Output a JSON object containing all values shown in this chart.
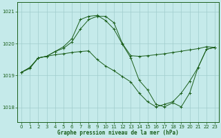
{
  "title": "Graphe pression niveau de la mer (hPa)",
  "background_color": "#c5eaea",
  "line_color": "#1a5e1a",
  "grid_color": "#a0cccc",
  "xlim": [
    -0.5,
    23.5
  ],
  "ylim": [
    1017.55,
    1021.3
  ],
  "yticks": [
    1018,
    1019,
    1020,
    1021
  ],
  "xticks": [
    0,
    1,
    2,
    3,
    4,
    5,
    6,
    7,
    8,
    9,
    10,
    11,
    12,
    13,
    14,
    15,
    16,
    17,
    18,
    19,
    20,
    21,
    22,
    23
  ],
  "series_upper": [
    1019.1,
    1019.25,
    1019.55,
    1019.6,
    1019.75,
    1019.85,
    1020.05,
    1020.45,
    1020.75,
    1020.85,
    1020.85,
    1020.65,
    1020.0,
    1019.62,
    1019.6,
    1019.62,
    1019.65,
    1019.68,
    1019.72,
    1019.76,
    1019.8,
    1019.84,
    1019.9,
    1019.88
  ],
  "series_peak": [
    1019.1,
    1019.25,
    1019.55,
    1019.6,
    1019.75,
    1019.9,
    1020.15,
    1020.75,
    1020.85,
    1020.88,
    1020.72,
    1020.45,
    1019.98,
    1019.55,
    1018.85,
    1018.55,
    1018.1,
    1018.02,
    1018.15,
    1018.02,
    1018.45,
    1019.25,
    1019.82,
    1019.88
  ],
  "series_lower": [
    1019.1,
    1019.22,
    1019.55,
    1019.6,
    1019.65,
    1019.68,
    1019.72,
    1019.75,
    1019.77,
    1019.5,
    1019.3,
    1019.15,
    1018.97,
    1018.8,
    1018.45,
    1018.18,
    1018.02,
    1018.1,
    1018.18,
    1018.45,
    1018.82,
    1019.25,
    1019.82,
    1019.88
  ]
}
